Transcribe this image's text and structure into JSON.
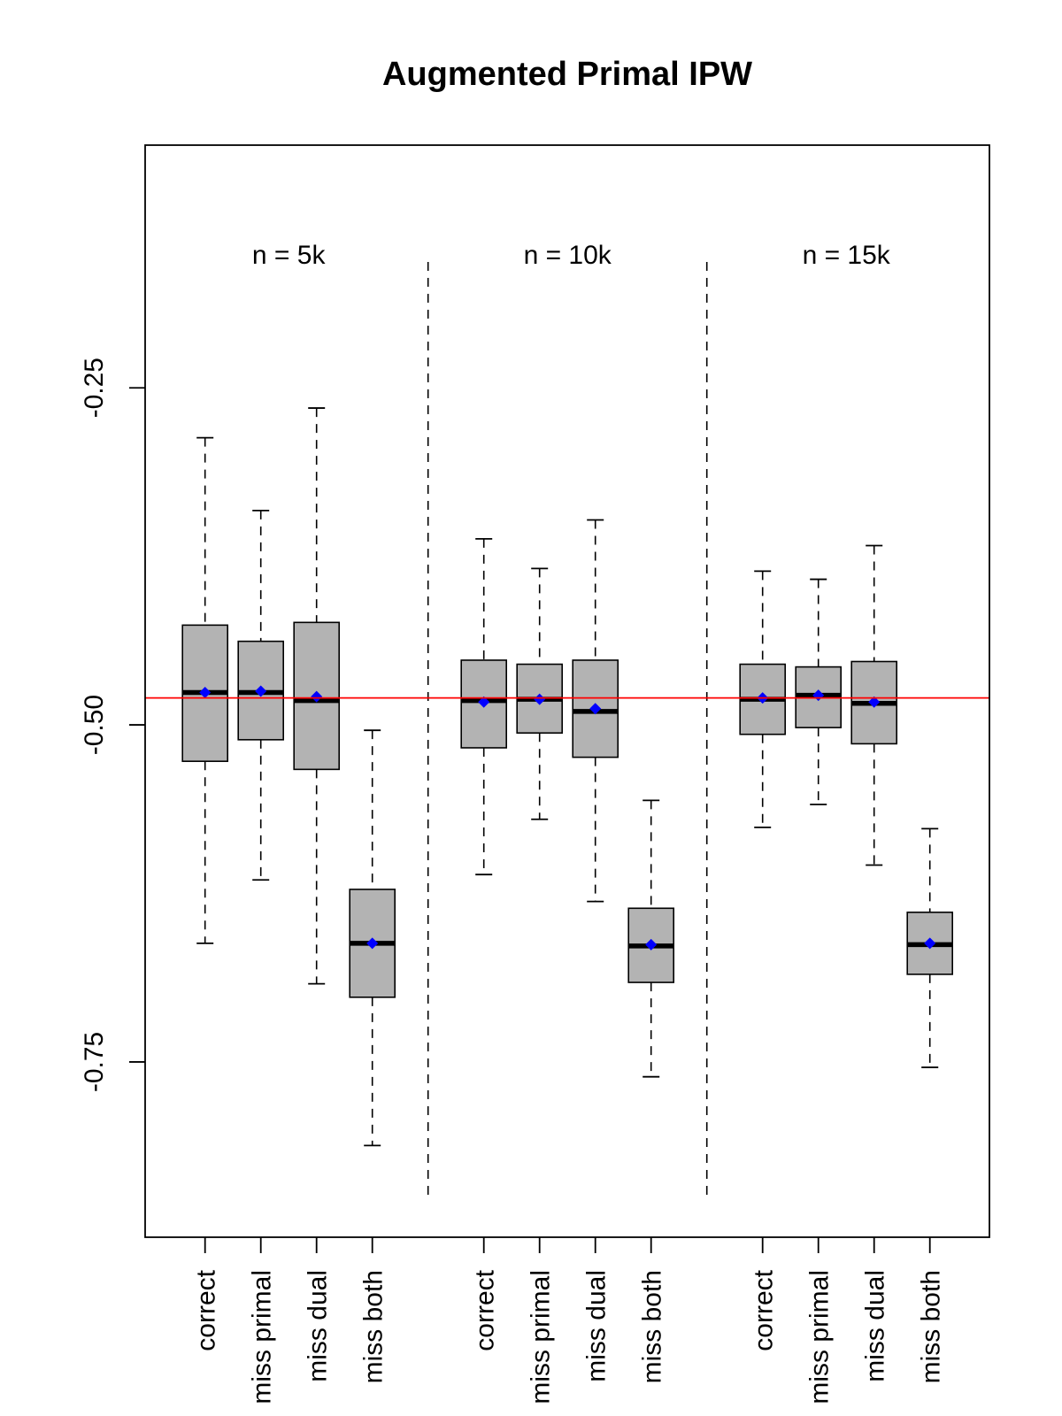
{
  "chart_data": {
    "type": "boxplot",
    "title": "Augmented Primal IPW",
    "xlabel": "",
    "ylabel": "",
    "ylim": [
      -0.88,
      -0.07
    ],
    "y_ticks": [
      -0.25,
      -0.5,
      -0.75
    ],
    "y_tick_labels": [
      "-0.25",
      "-0.50",
      "-0.75"
    ],
    "reference_line": {
      "y": -0.48,
      "color": "#ff0000"
    },
    "box_fill": "#b3b3b3",
    "mean_color": "#0000ff",
    "groups": [
      {
        "label": "n = 5k",
        "boxes": [
          {
            "name": "correct",
            "min": -0.662,
            "q1": -0.527,
            "median": -0.476,
            "q3": -0.426,
            "max": -0.287,
            "mean": -0.476
          },
          {
            "name": "miss primal",
            "min": -0.615,
            "q1": -0.511,
            "median": -0.476,
            "q3": -0.438,
            "max": -0.341,
            "mean": -0.475
          },
          {
            "name": "miss dual",
            "min": -0.692,
            "q1": -0.533,
            "median": -0.482,
            "q3": -0.424,
            "max": -0.265,
            "mean": -0.479
          },
          {
            "name": "miss both",
            "min": -0.812,
            "q1": -0.702,
            "median": -0.662,
            "q3": -0.622,
            "max": -0.504,
            "mean": -0.662
          }
        ]
      },
      {
        "label": "n = 10k",
        "boxes": [
          {
            "name": "correct",
            "min": -0.611,
            "q1": -0.517,
            "median": -0.482,
            "q3": -0.452,
            "max": -0.362,
            "mean": -0.483
          },
          {
            "name": "miss primal",
            "min": -0.57,
            "q1": -0.506,
            "median": -0.481,
            "q3": -0.455,
            "max": -0.384,
            "mean": -0.481
          },
          {
            "name": "miss dual",
            "min": -0.631,
            "q1": -0.524,
            "median": -0.49,
            "q3": -0.452,
            "max": -0.348,
            "mean": -0.488
          },
          {
            "name": "miss both",
            "min": -0.761,
            "q1": -0.691,
            "median": -0.664,
            "q3": -0.636,
            "max": -0.556,
            "mean": -0.663
          }
        ]
      },
      {
        "label": "n = 15k",
        "boxes": [
          {
            "name": "correct",
            "min": -0.576,
            "q1": -0.507,
            "median": -0.481,
            "q3": -0.455,
            "max": -0.386,
            "mean": -0.48
          },
          {
            "name": "miss primal",
            "min": -0.559,
            "q1": -0.502,
            "median": -0.478,
            "q3": -0.457,
            "max": -0.392,
            "mean": -0.478
          },
          {
            "name": "miss dual",
            "min": -0.604,
            "q1": -0.514,
            "median": -0.484,
            "q3": -0.453,
            "max": -0.367,
            "mean": -0.483
          },
          {
            "name": "miss both",
            "min": -0.754,
            "q1": -0.685,
            "median": -0.663,
            "q3": -0.639,
            "max": -0.577,
            "mean": -0.662
          }
        ]
      }
    ]
  }
}
